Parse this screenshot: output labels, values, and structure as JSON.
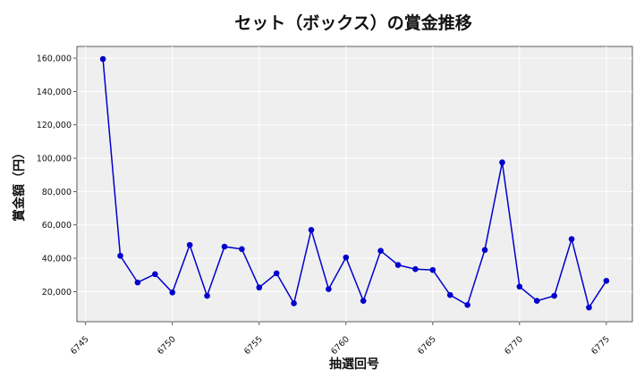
{
  "chart_data": {
    "type": "line",
    "title": "セット（ボックス）の賞金推移",
    "xlabel": "抽選回号",
    "ylabel": "賞金額（円）",
    "xlim": [
      6744.5,
      6776.5
    ],
    "ylim": [
      2000,
      167000
    ],
    "x_ticks": [
      6745,
      6750,
      6755,
      6760,
      6765,
      6770,
      6775
    ],
    "y_ticks": [
      20000,
      40000,
      60000,
      80000,
      100000,
      120000,
      140000,
      160000
    ],
    "y_tick_labels": [
      "20,000",
      "40,000",
      "60,000",
      "80,000",
      "100,000",
      "120,000",
      "140,000",
      "160,000"
    ],
    "grid": true,
    "series": [
      {
        "color": "#0000cc",
        "x": [
          6746,
          6747,
          6748,
          6749,
          6750,
          6751,
          6752,
          6753,
          6754,
          6755,
          6756,
          6757,
          6758,
          6759,
          6760,
          6761,
          6762,
          6763,
          6764,
          6765,
          6766,
          6767,
          6768,
          6769,
          6770,
          6771,
          6772,
          6773,
          6774,
          6775
        ],
        "values": [
          159500,
          41500,
          25500,
          30500,
          19500,
          48000,
          17500,
          47000,
          45500,
          22500,
          31000,
          13000,
          57000,
          21500,
          40500,
          14500,
          44500,
          36000,
          33500,
          33000,
          18000,
          12000,
          45000,
          97500,
          23000,
          14500,
          17500,
          51500,
          10500,
          26500
        ]
      }
    ]
  }
}
